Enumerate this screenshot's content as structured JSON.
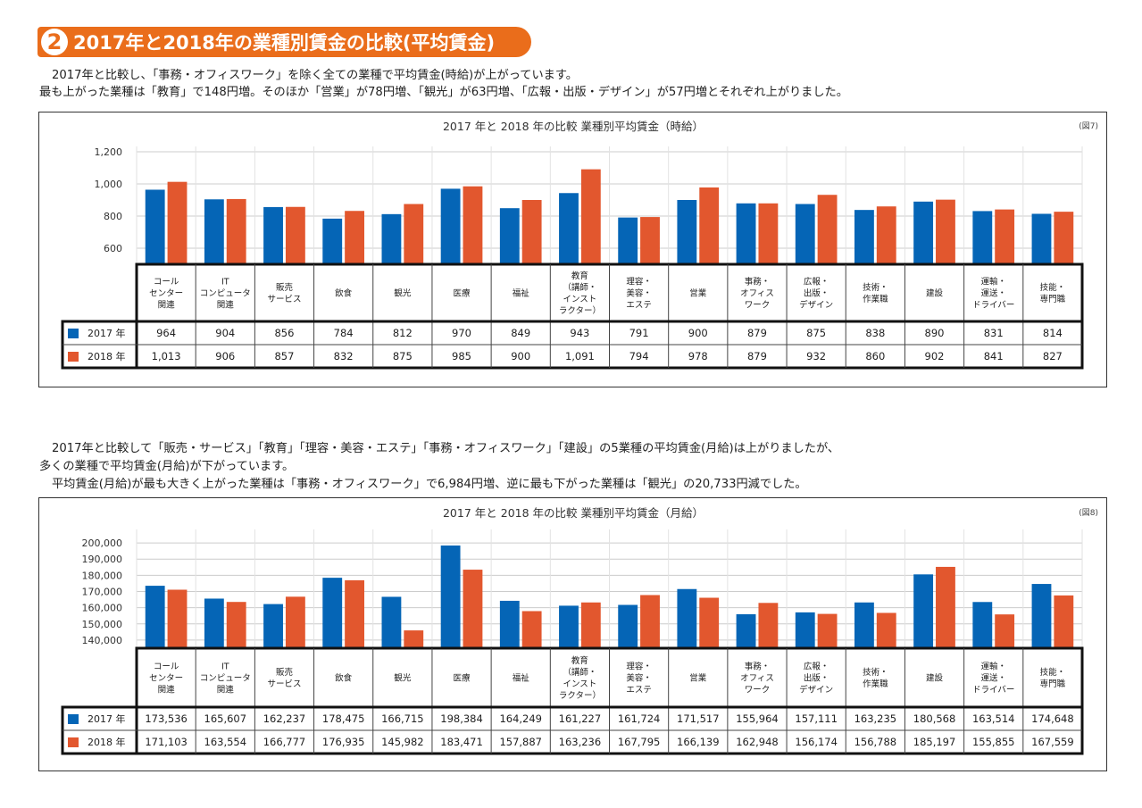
{
  "section": {
    "number": "2",
    "title": "2017年と2018年の業種別賃金の比較(平均賃金)"
  },
  "paragraph1": {
    "line1": "2017年と比較し、「事務・オフィスワーク」を除く全ての業種で平均賃金(時給)が上がっています。",
    "line2": "最も上がった業種は「教育」で148円増。そのほか「営業」が78円増、「観光」が63円増、「広報・出版・デザイン」が57円増とそれぞれ上がりました。"
  },
  "paragraph2": {
    "line1": "2017年と比較して「販売・サービス」「教育」「理容・美容・エステ」「事務・オフィスワーク」「建設」の5業種の平均賃金(月給)は上がりましたが、",
    "line2": "多くの業種で平均賃金(月給)が下がっています。",
    "line3": "平均賃金(月給)が最も大きく上がった業種は「事務・オフィスワーク」で6,984円増、逆に最も下がった業種は「観光」の20,733円減でした。"
  },
  "colors": {
    "s2017": "#0565b6",
    "s2018": "#e2572e",
    "accent": "#ea6d1b",
    "grid": "#cccccc"
  },
  "chart_data": [
    {
      "type": "bar",
      "title": "2017 年と 2018 年の比較 業種別平均賃金（時給）",
      "figure_label": "(図7)",
      "categories": [
        [
          "コール",
          "センター",
          "関連"
        ],
        [
          "IT",
          "コンピュータ",
          "関連"
        ],
        [
          "販売",
          "サービス"
        ],
        [
          "飲食"
        ],
        [
          "観光"
        ],
        [
          "医療"
        ],
        [
          "福祉"
        ],
        [
          "教育",
          "（講師・",
          "インスト",
          "ラクター）"
        ],
        [
          "理容・",
          "美容・",
          "エステ"
        ],
        [
          "営業"
        ],
        [
          "事務・",
          "オフィス",
          "ワーク"
        ],
        [
          "広報・",
          "出版・",
          "デザイン"
        ],
        [
          "技術・",
          "作業職"
        ],
        [
          "建設"
        ],
        [
          "運輸・",
          "運送・",
          "ドライバー"
        ],
        [
          "技能・",
          "専門職"
        ]
      ],
      "series": [
        {
          "name": "2017 年",
          "values": [
            964,
            904,
            856,
            784,
            812,
            970,
            849,
            943,
            791,
            900,
            879,
            875,
            838,
            890,
            831,
            814
          ],
          "labels": [
            "964",
            "904",
            "856",
            "784",
            "812",
            "970",
            "849",
            "943",
            "791",
            "900",
            "879",
            "875",
            "838",
            "890",
            "831",
            "814"
          ]
        },
        {
          "name": "2018 年",
          "values": [
            1013,
            906,
            857,
            832,
            875,
            985,
            900,
            1091,
            794,
            978,
            879,
            932,
            860,
            902,
            841,
            827
          ],
          "labels": [
            "1,013",
            "906",
            "857",
            "832",
            "875",
            "985",
            "900",
            "1,091",
            "794",
            "978",
            "879",
            "932",
            "860",
            "902",
            "841",
            "827"
          ]
        }
      ],
      "y_ticks": [
        600,
        800,
        1000,
        1200
      ],
      "y_tick_labels": [
        "600",
        "800",
        "1,000",
        "1,200"
      ],
      "ylim": [
        500,
        1200
      ],
      "grid": true
    },
    {
      "type": "bar",
      "title": "2017 年と 2018 年の比較 業種別平均賃金（月給）",
      "figure_label": "(図8)",
      "categories": [
        [
          "コール",
          "センター",
          "関連"
        ],
        [
          "IT",
          "コンピュータ",
          "関連"
        ],
        [
          "販売",
          "サービス"
        ],
        [
          "飲食"
        ],
        [
          "観光"
        ],
        [
          "医療"
        ],
        [
          "福祉"
        ],
        [
          "教育",
          "（講師・",
          "インスト",
          "ラクター）"
        ],
        [
          "理容・",
          "美容・",
          "エステ"
        ],
        [
          "営業"
        ],
        [
          "事務・",
          "オフィス",
          "ワーク"
        ],
        [
          "広報・",
          "出版・",
          "デザイン"
        ],
        [
          "技術・",
          "作業職"
        ],
        [
          "建設"
        ],
        [
          "運輸・",
          "運送・",
          "ドライバー"
        ],
        [
          "技能・",
          "専門職"
        ]
      ],
      "series": [
        {
          "name": "2017 年",
          "values": [
            173536,
            165607,
            162237,
            178475,
            166715,
            198384,
            164249,
            161227,
            161724,
            171517,
            155964,
            157111,
            163235,
            180568,
            163514,
            174648
          ],
          "labels": [
            "173,536",
            "165,607",
            "162,237",
            "178,475",
            "166,715",
            "198,384",
            "164,249",
            "161,227",
            "161,724",
            "171,517",
            "155,964",
            "157,111",
            "163,235",
            "180,568",
            "163,514",
            "174,648"
          ]
        },
        {
          "name": "2018 年",
          "values": [
            171103,
            163554,
            166777,
            176935,
            145982,
            183471,
            157887,
            163236,
            167795,
            166139,
            162948,
            156174,
            156788,
            185197,
            155855,
            167559
          ],
          "labels": [
            "171,103",
            "163,554",
            "166,777",
            "176,935",
            "145,982",
            "183,471",
            "157,887",
            "163,236",
            "167,795",
            "166,139",
            "162,948",
            "156,174",
            "156,788",
            "185,197",
            "155,855",
            "167,559"
          ]
        }
      ],
      "y_ticks": [
        140000,
        150000,
        160000,
        170000,
        180000,
        190000,
        200000
      ],
      "y_tick_labels": [
        "140,000",
        "150,000",
        "160,000",
        "170,000",
        "180,000",
        "190,000",
        "200,000"
      ],
      "ylim": [
        135000,
        205000
      ],
      "grid": true
    }
  ]
}
